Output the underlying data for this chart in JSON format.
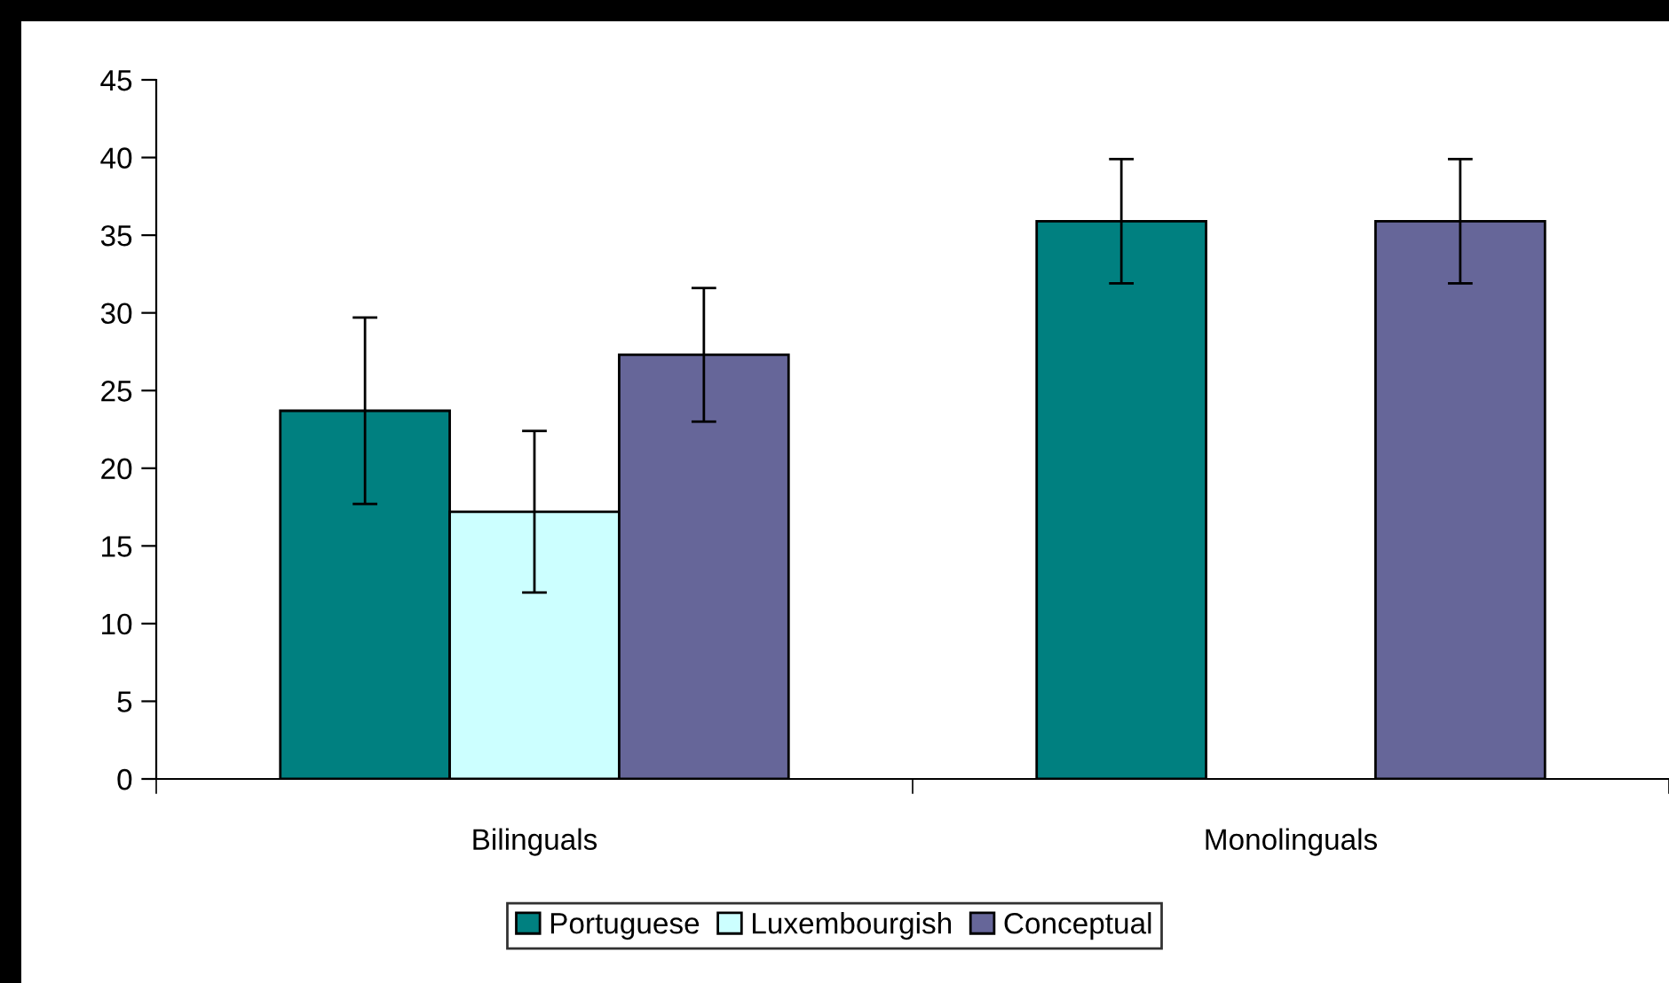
{
  "chart_data": {
    "type": "bar",
    "categories": [
      "Bilinguals",
      "Monolinguals"
    ],
    "series": [
      {
        "name": "Portuguese",
        "color": "#008080",
        "values": [
          23.7,
          35.9
        ],
        "errors": [
          6.0,
          4.0
        ]
      },
      {
        "name": "Luxembourgish",
        "color": "#ccffff",
        "values": [
          17.2,
          null
        ],
        "errors": [
          5.2,
          null
        ]
      },
      {
        "name": "Conceptual",
        "color": "#666699",
        "values": [
          27.3,
          35.9
        ],
        "errors": [
          4.3,
          4.0
        ]
      }
    ],
    "ylim": [
      0,
      45
    ],
    "yticks": [
      0,
      5,
      10,
      15,
      20,
      25,
      30,
      35,
      40,
      45
    ],
    "grid": false,
    "legend": "bottom"
  }
}
